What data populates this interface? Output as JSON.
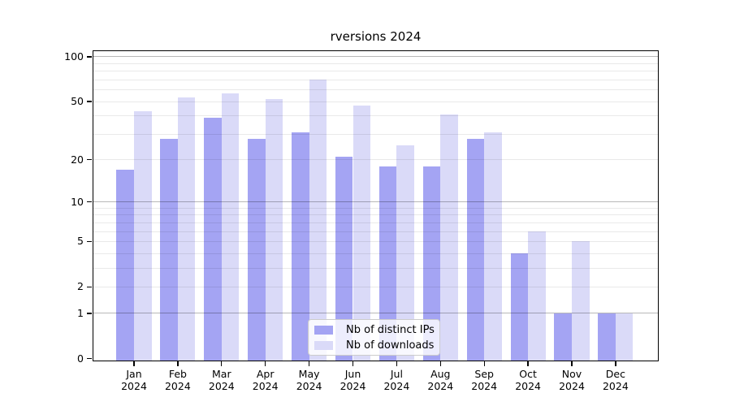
{
  "chart_data": {
    "type": "bar",
    "title": "rversions 2024",
    "categories": [
      "Jan",
      "Feb",
      "Mar",
      "Apr",
      "May",
      "Jun",
      "Jul",
      "Aug",
      "Sep",
      "Oct",
      "Nov",
      "Dec"
    ],
    "year_label": "2024",
    "series": [
      {
        "name": "Nb of distinct IPs",
        "color": "#a4a4f3",
        "values": [
          17,
          28,
          39,
          28,
          31,
          21,
          18,
          18,
          28,
          4,
          1,
          1
        ]
      },
      {
        "name": "Nb of downloads",
        "color": "#dadaf8",
        "values": [
          43,
          53,
          57,
          52,
          70,
          47,
          25,
          41,
          31,
          6,
          5,
          1
        ]
      }
    ],
    "y_scale": "log10(1+x)",
    "y_tick_values": [
      100,
      50,
      20,
      10,
      5,
      2,
      1,
      0
    ],
    "y_tick_labels": [
      "100",
      "50",
      "20",
      "10",
      "5",
      "2",
      "1",
      "0"
    ],
    "major_gridline_values": [
      1,
      10,
      100
    ],
    "minor_gridline_values": [
      2,
      3,
      4,
      5,
      6,
      7,
      8,
      9,
      20,
      30,
      40,
      50,
      60,
      70,
      80,
      90
    ],
    "ylim": [
      0,
      111
    ],
    "grid": "horizontal",
    "legend_position": "bottom-center",
    "background_color": "#ffffff",
    "spine_color": "#000000"
  }
}
